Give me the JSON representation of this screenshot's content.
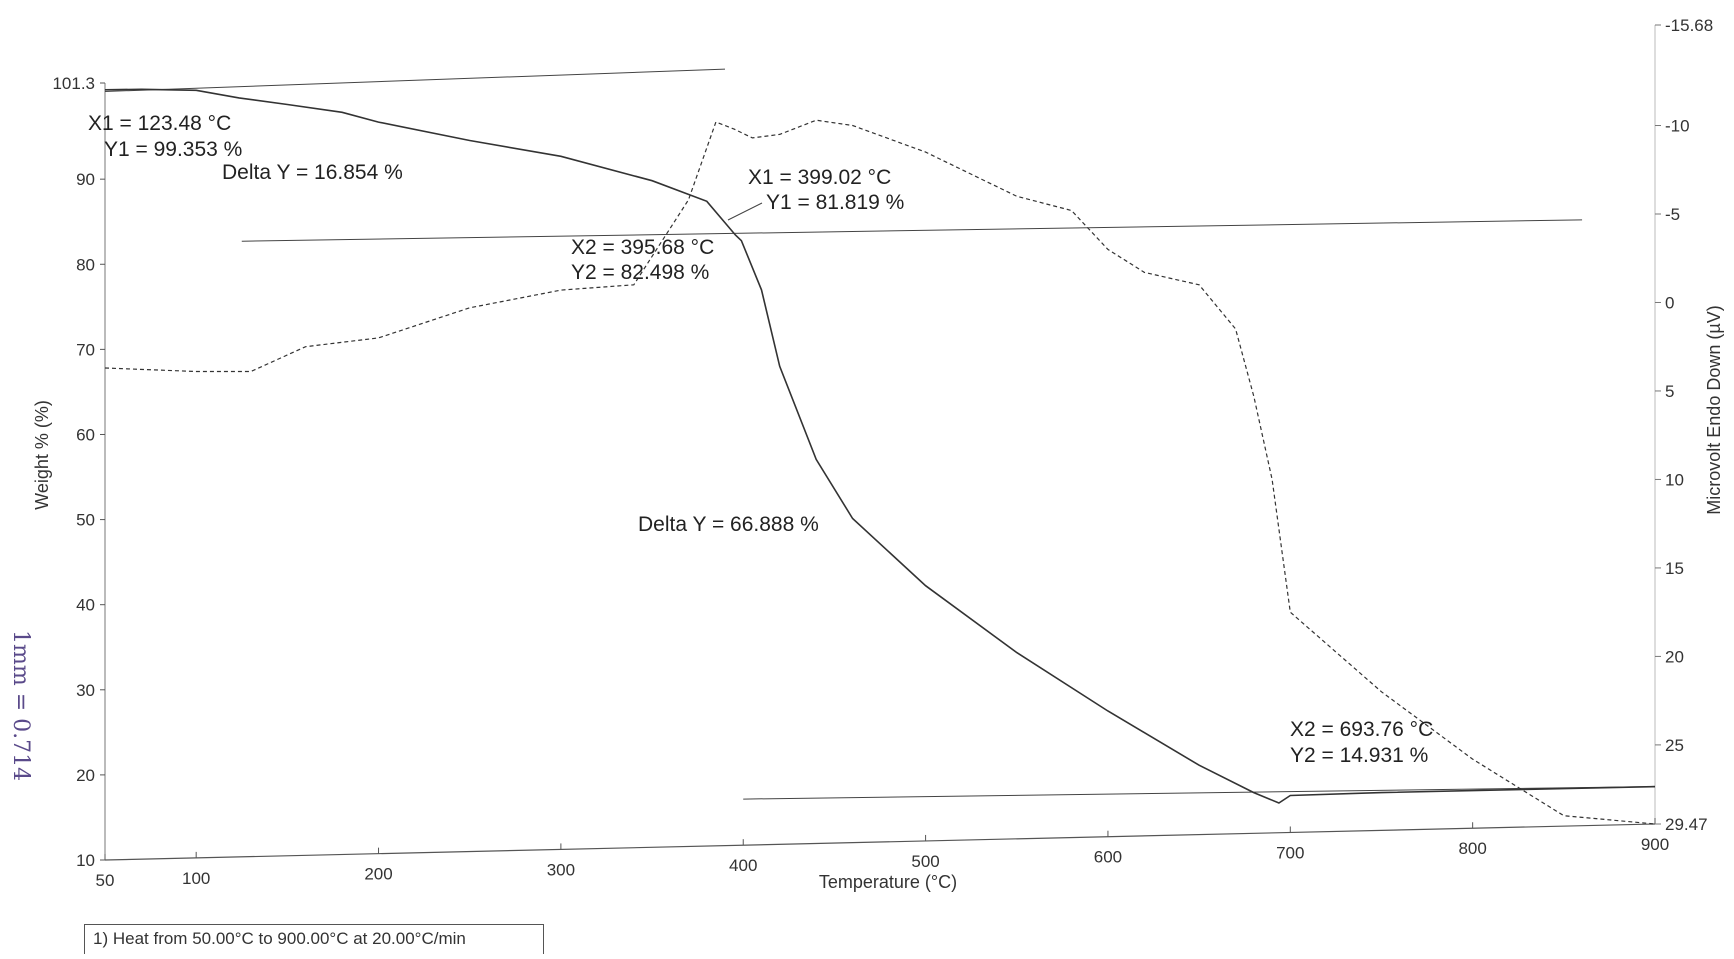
{
  "chart_data": {
    "type": "line",
    "xlabel": "Temperature (°C)",
    "ylabel": "Weight % (%)",
    "y2label": "Microvolt Endo Down (µV)",
    "xlim": [
      50,
      900
    ],
    "ylim": [
      10,
      101.3
    ],
    "y2lim": [
      -15.68,
      29.47
    ],
    "x_ticks": [
      "50",
      "100",
      "200",
      "300",
      "400",
      "500",
      "600",
      "700",
      "800",
      "900"
    ],
    "y_ticks": [
      "10",
      "20",
      "30",
      "40",
      "50",
      "60",
      "70",
      "80",
      "90",
      "101.3"
    ],
    "y2_ticks": [
      "-15.68",
      "-10",
      "-5",
      "0",
      "5",
      "10",
      "15",
      "20",
      "25",
      "29.47"
    ],
    "grid": false,
    "series": [
      {
        "style": "solid",
        "axis": "left",
        "x": [
          50,
          70,
          100,
          123.48,
          150,
          180,
          200,
          250,
          300,
          350,
          380,
          395.68,
          399.02,
          410,
          420,
          440,
          460,
          500,
          550,
          600,
          650,
          680,
          693.76,
          700,
          750,
          800,
          850,
          900
        ],
        "y": [
          100.5,
          100.5,
          100.3,
          99.353,
          98.5,
          97.5,
          96.3,
          94,
          92,
          89,
          86.5,
          82.498,
          81.819,
          76,
          67,
          56,
          49,
          41,
          33,
          26,
          19.5,
          16.2,
          14.931,
          15.8,
          16.0,
          16.1,
          16.2,
          16.3
        ]
      },
      {
        "style": "dashed",
        "axis": "right",
        "x": [
          50,
          100,
          130,
          160,
          200,
          250,
          300,
          340,
          370,
          385,
          395,
          405,
          420,
          440,
          460,
          500,
          550,
          580,
          600,
          620,
          650,
          670,
          680,
          690,
          700,
          750,
          800,
          850,
          900
        ],
        "y": [
          3.7,
          3.9,
          3.9,
          2.5,
          2.0,
          0.3,
          -0.7,
          -1.0,
          -5.8,
          -10.2,
          -9.8,
          -9.3,
          -9.5,
          -10.3,
          -10.0,
          -8.5,
          -6.0,
          -5.2,
          -3.0,
          -1.7,
          -1.0,
          1.5,
          5.3,
          10.0,
          17.5,
          22.0,
          25.8,
          29.0,
          29.47
        ]
      }
    ],
    "baselines": [
      {
        "x": [
          50,
          390
        ],
        "y": [
          100.3,
          102
        ]
      },
      {
        "x": [
          125,
          860
        ],
        "y": [
          82.5,
          83
        ]
      },
      {
        "x": [
          400,
          900
        ],
        "y": [
          16.2,
          16.3
        ]
      }
    ],
    "annotations": [
      {
        "lines": [
          "X1 = 123.48 °C",
          "Y1 = 99.353 %"
        ],
        "x": 123.48,
        "y": 99.353
      },
      {
        "lines": [
          "Delta Y = 16.854 %"
        ]
      },
      {
        "lines": [
          "X1 = 399.02 °C",
          "Y1 = 81.819 %"
        ],
        "x": 399.02,
        "y": 81.819
      },
      {
        "lines": [
          "X2 = 395.68 °C",
          "Y2 = 82.498 %"
        ],
        "x": 395.68,
        "y": 82.498
      },
      {
        "lines": [
          "Delta Y = 66.888 %"
        ]
      },
      {
        "lines": [
          "X2 = 693.76 °C",
          "Y2 = 14.931 %"
        ],
        "x": 693.76,
        "y": 14.931
      }
    ],
    "footer_note": "1)  Heat from 50.00°C to 900.00°C at 20.00°C/min",
    "handwritten_note": "1mm = 0.714"
  }
}
